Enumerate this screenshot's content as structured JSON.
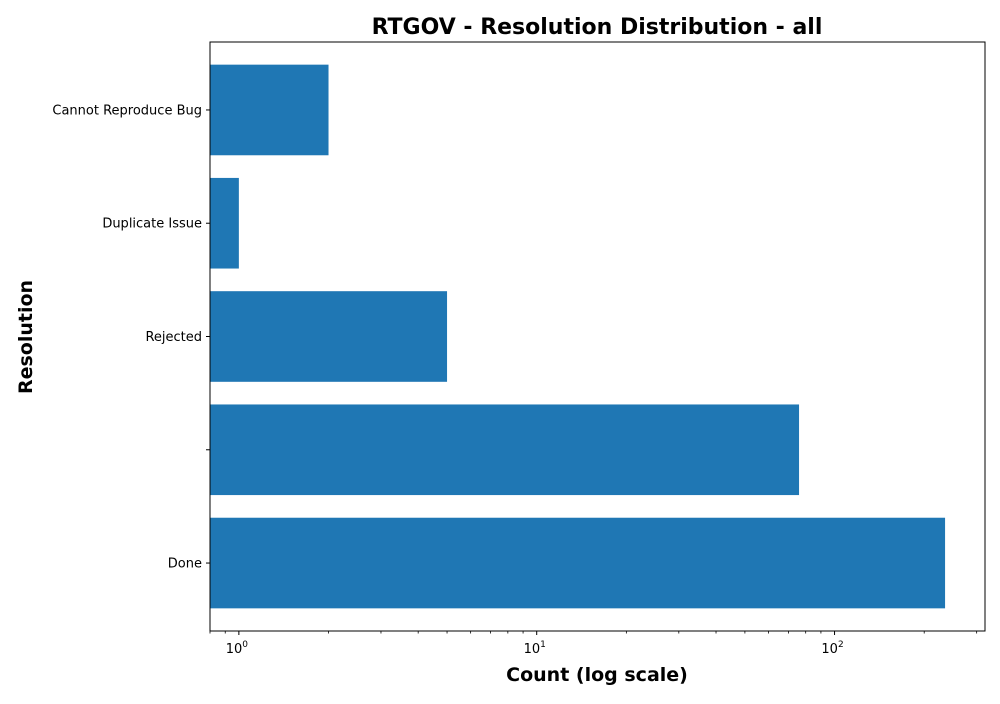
{
  "chart_data": {
    "type": "bar",
    "orientation": "horizontal",
    "title": "RTGOV - Resolution Distribution - all",
    "xlabel": "Count (log scale)",
    "ylabel": "Resolution",
    "xscale": "log",
    "xlim": [
      0.8,
      320
    ],
    "categories": [
      "Done",
      "",
      "Rejected",
      "Duplicate Issue",
      "Cannot Reproduce Bug"
    ],
    "values": [
      235,
      76,
      5,
      1,
      2
    ],
    "x_ticks": [
      {
        "value": 1,
        "base": "10",
        "exp": "0"
      },
      {
        "value": 10,
        "base": "10",
        "exp": "1"
      },
      {
        "value": 100,
        "base": "10",
        "exp": "2"
      }
    ],
    "colors": {
      "bar": "#1f77b4",
      "axis": "#000000"
    }
  }
}
